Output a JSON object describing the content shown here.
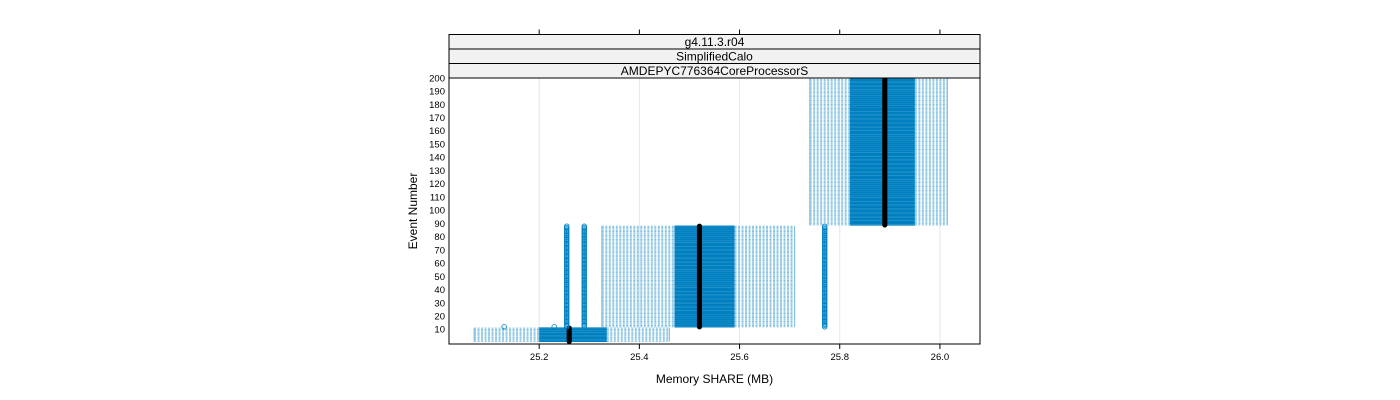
{
  "chart_data": {
    "type": "bar",
    "strips": [
      "g4.11.3.r04",
      "SimplifiedCalo",
      "AMDEPYC776364CoreProcessorS"
    ],
    "xlabel": "Memory SHARE (MB)",
    "ylabel": "Event Number",
    "xlim": [
      25.02,
      26.08
    ],
    "ylim": [
      -1,
      200
    ],
    "x_ticks": [
      25.2,
      25.4,
      25.6,
      25.8,
      26.0
    ],
    "x_tick_labels": [
      "25.2",
      "25.4",
      "25.6",
      "25.8",
      "26.0"
    ],
    "y_ticks": [
      10,
      20,
      30,
      40,
      50,
      60,
      70,
      80,
      90,
      100,
      110,
      120,
      130,
      140,
      150,
      160,
      170,
      180,
      190,
      200
    ],
    "y_tick_labels": [
      "10",
      "20",
      "30",
      "40",
      "50",
      "60",
      "70",
      "80",
      "90",
      "100",
      "110",
      "120",
      "130",
      "140",
      "150",
      "160",
      "170",
      "180",
      "190",
      "200"
    ],
    "grid": true,
    "colors": {
      "box": "#0080c0",
      "whisker": "#7fbfdf",
      "median": "#000000",
      "outlier": "#0080c0",
      "strip_bg": "#f2f2f2"
    },
    "groups": [
      {
        "events": [
          1,
          11
        ],
        "whisker_low": 25.07,
        "q1": 25.2,
        "median": 25.26,
        "q3": 25.335,
        "whisker_high": 25.46,
        "outliers": [
          {
            "x": 25.13,
            "y_from": 12,
            "y_to": 12
          },
          {
            "x": 25.23,
            "y_from": 12,
            "y_to": 12
          },
          {
            "x": 25.255,
            "y_from": 12,
            "y_to": 88
          },
          {
            "x": 25.29,
            "y_from": 12,
            "y_to": 88
          }
        ]
      },
      {
        "events": [
          12,
          88
        ],
        "whisker_low": 25.325,
        "q1": 25.47,
        "median": 25.52,
        "q3": 25.59,
        "whisker_high": 25.71,
        "outliers": [
          {
            "x": 25.77,
            "y_from": 12,
            "y_to": 88
          }
        ]
      },
      {
        "events": [
          89,
          200
        ],
        "whisker_low": 25.74,
        "q1": 25.82,
        "median": 25.89,
        "q3": 25.95,
        "whisker_high": 26.015,
        "outliers": []
      }
    ]
  }
}
